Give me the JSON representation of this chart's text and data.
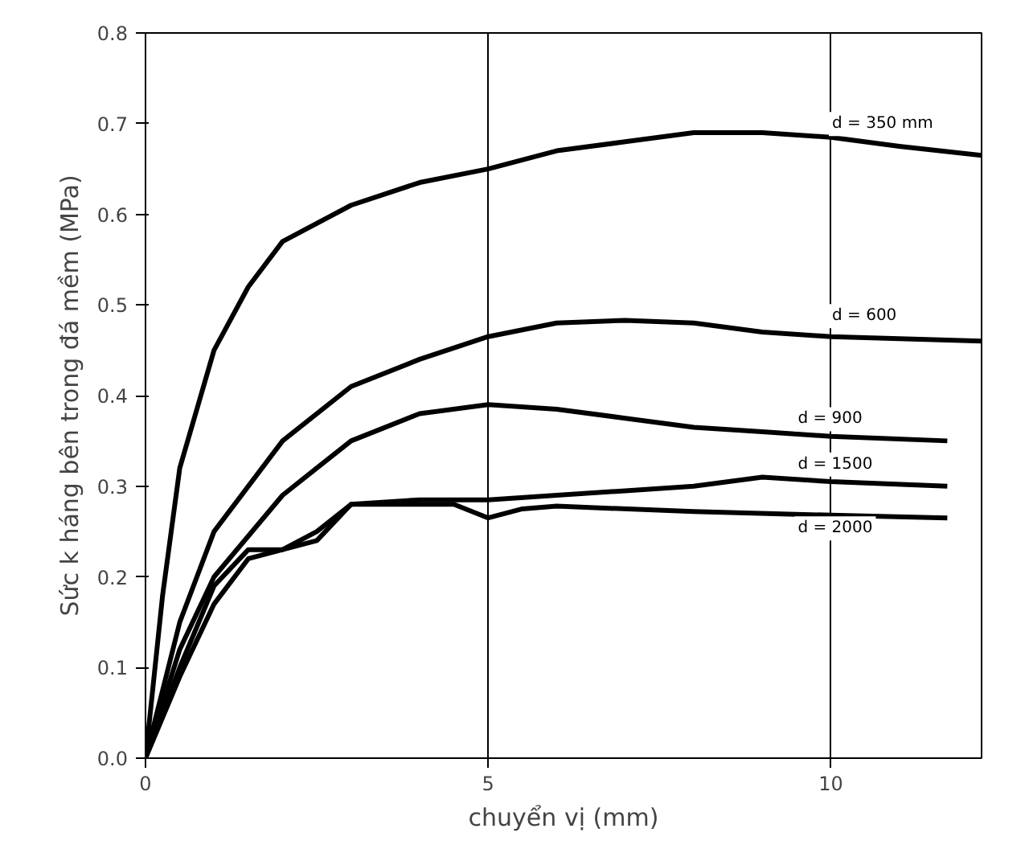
{
  "chart_data": {
    "type": "line",
    "xlabel": "chuyển vị (mm)",
    "ylabel": "Sức k háng bên trong đá mềm (MPa)",
    "series": [
      {
        "name": "d = 350 mm",
        "color": "#000000",
        "x": [
          0,
          0.25,
          0.5,
          1,
          1.5,
          2,
          3,
          4,
          5,
          6,
          7,
          8,
          9,
          10,
          11,
          12.2
        ],
        "values": [
          0,
          0.18,
          0.32,
          0.45,
          0.52,
          0.57,
          0.61,
          0.635,
          0.65,
          0.67,
          0.68,
          0.69,
          0.69,
          0.685,
          0.675,
          0.665
        ]
      },
      {
        "name": "d = 600",
        "color": "#000000",
        "x": [
          0,
          0.5,
          1,
          2,
          3,
          4,
          5,
          6,
          7,
          8,
          9,
          10,
          12.2
        ],
        "values": [
          0,
          0.15,
          0.25,
          0.35,
          0.41,
          0.44,
          0.465,
          0.48,
          0.483,
          0.48,
          0.47,
          0.465,
          0.46
        ]
      },
      {
        "name": "d = 900",
        "color": "#000000",
        "x": [
          0,
          0.5,
          1,
          2,
          2.5,
          3,
          4,
          5,
          6,
          7,
          8,
          9,
          10,
          11.7
        ],
        "values": [
          0,
          0.12,
          0.2,
          0.29,
          0.32,
          0.35,
          0.38,
          0.39,
          0.385,
          0.375,
          0.365,
          0.36,
          0.355,
          0.35
        ]
      },
      {
        "name": "d = 1500",
        "color": "#000000",
        "x": [
          0,
          0.5,
          1,
          1.5,
          2,
          2.5,
          3,
          4,
          5,
          6,
          7,
          8,
          9,
          10,
          11.7
        ],
        "values": [
          0,
          0.09,
          0.17,
          0.22,
          0.23,
          0.24,
          0.28,
          0.285,
          0.285,
          0.29,
          0.295,
          0.3,
          0.31,
          0.305,
          0.3
        ]
      },
      {
        "name": "d = 2000",
        "color": "#000000",
        "x": [
          0,
          0.5,
          1,
          1.5,
          2,
          2.5,
          3,
          4,
          4.5,
          5,
          5.5,
          6,
          8,
          10,
          11.7
        ],
        "values": [
          0,
          0.1,
          0.19,
          0.23,
          0.23,
          0.25,
          0.28,
          0.28,
          0.28,
          0.265,
          0.275,
          0.278,
          0.272,
          0.268,
          0.265
        ]
      }
    ],
    "xlim": [
      0,
      12.2
    ],
    "ylim": [
      0,
      0.8
    ],
    "xticks": [
      0,
      5,
      10
    ],
    "yticks": [
      {
        "value": 0,
        "label": "0.0"
      },
      0.1,
      0.2,
      0.3,
      0.4,
      0.5,
      0.6,
      0.7,
      0.8
    ],
    "grid": "x",
    "marker": "none",
    "line_style": "solid"
  }
}
